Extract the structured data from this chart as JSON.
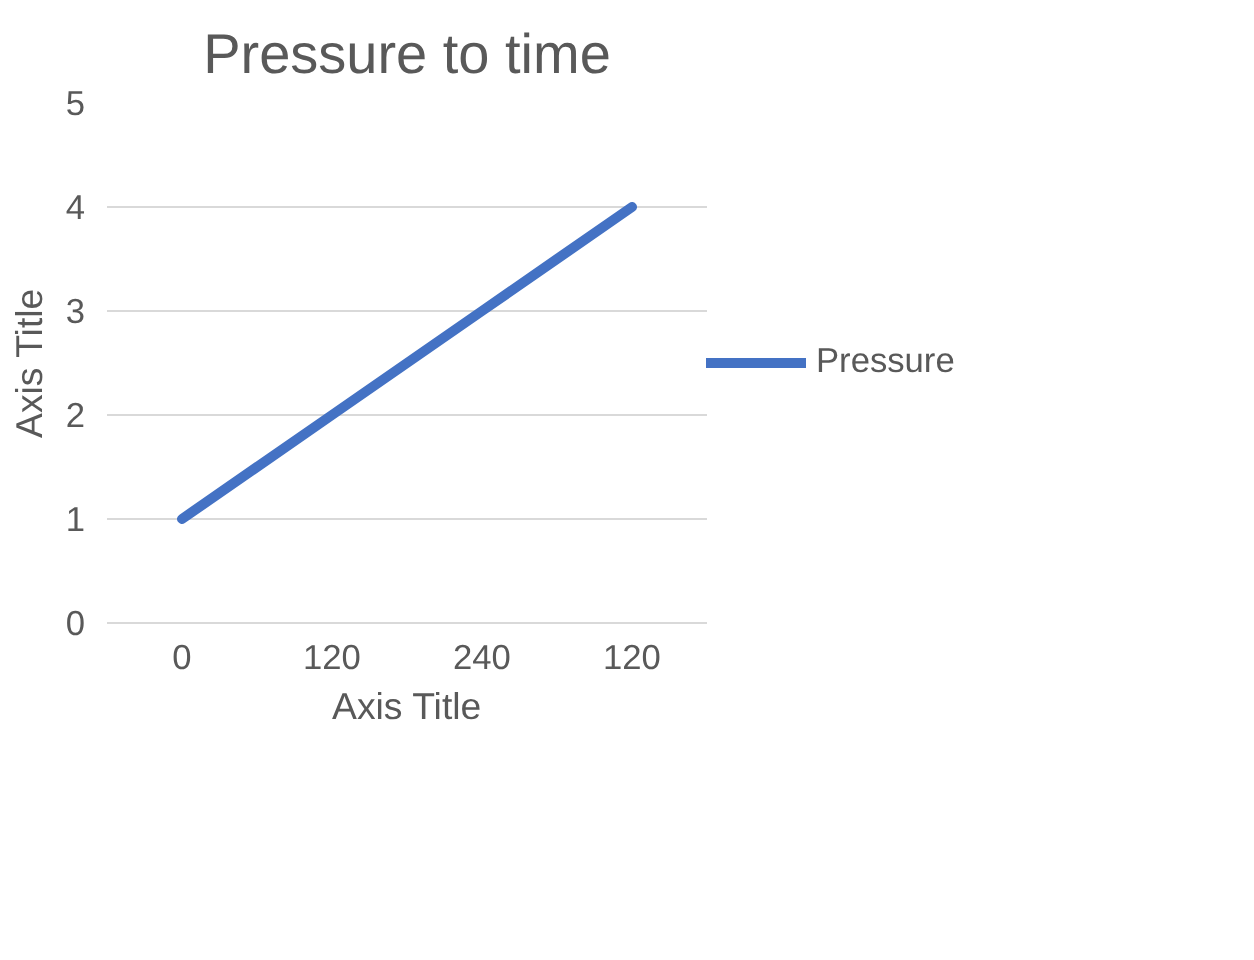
{
  "chart_data": {
    "type": "line",
    "title": "Pressure to time",
    "xlabel": "Axis Title",
    "ylabel": "Axis Title",
    "categories": [
      "0",
      "120",
      "240",
      "120"
    ],
    "series": [
      {
        "name": "Pressure",
        "color": "#4472c4",
        "values": [
          1,
          2,
          3,
          4
        ]
      }
    ],
    "ylim": [
      0,
      5
    ],
    "yticks": [
      0,
      1,
      2,
      3,
      4,
      5
    ],
    "grid": "y",
    "legend": "right",
    "marker": "none",
    "line_style": "solid"
  }
}
